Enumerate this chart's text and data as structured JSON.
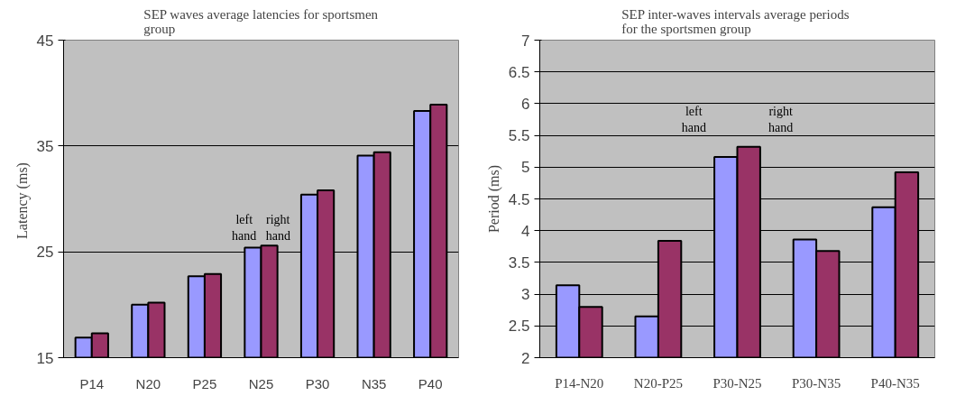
{
  "chart_data": [
    {
      "type": "bar",
      "title": "SEP waves average latencies for sportsmen group",
      "ylabel": "Latency  (ms)",
      "categories": [
        "P14",
        "N20",
        "P25",
        "N25",
        "P30",
        "N35",
        "P40"
      ],
      "series": [
        {
          "name": "left hand",
          "color": "#9999ff",
          "values": [
            16.9,
            20.0,
            22.7,
            25.4,
            30.4,
            34.1,
            38.3
          ]
        },
        {
          "name": "right hand",
          "color": "#993366",
          "values": [
            17.3,
            20.2,
            22.9,
            25.6,
            30.8,
            34.4,
            38.9
          ]
        }
      ],
      "ylim": [
        15,
        45
      ],
      "yticks": [
        15,
        25,
        35,
        45
      ],
      "grid": "y"
    },
    {
      "type": "bar",
      "title": "SEP inter-waves intervals average periods  for the sportsmen group",
      "ylabel": "Period (ms)",
      "categories": [
        "P14-N20",
        "N20-P25",
        "P30-N25",
        "P30-N35",
        "P40-N35"
      ],
      "series": [
        {
          "name": "left hand",
          "color": "#9999ff",
          "values": [
            3.14,
            2.65,
            5.16,
            3.86,
            4.37
          ]
        },
        {
          "name": "right hand",
          "color": "#993366",
          "values": [
            2.8,
            3.84,
            5.32,
            3.68,
            4.92
          ]
        }
      ],
      "ylim": [
        2,
        7
      ],
      "yticks": [
        2,
        2.5,
        3,
        3.5,
        4,
        4.5,
        5,
        5.5,
        6,
        6.5,
        7
      ],
      "grid": "y"
    }
  ]
}
